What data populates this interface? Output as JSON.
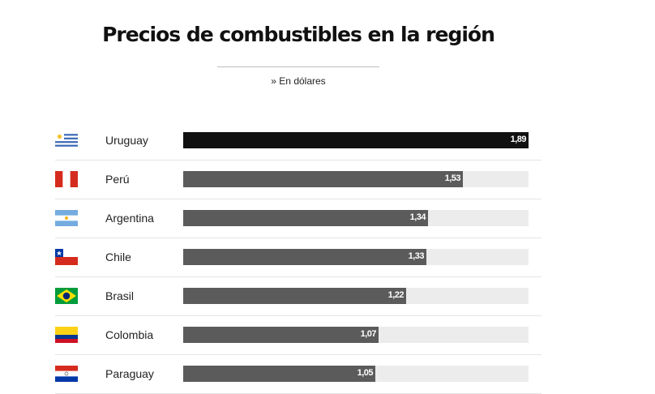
{
  "header": {
    "title": "Precios de combustibles en la región",
    "subtitle": "» En dólares"
  },
  "chart_data": {
    "type": "bar",
    "orientation": "horizontal",
    "title": "Precios de combustibles en la región",
    "subtitle": "» En dólares",
    "categories": [
      "Uruguay",
      "Perú",
      "Argentina",
      "Chile",
      "Brasil",
      "Colombia",
      "Paraguay"
    ],
    "values": [
      1.89,
      1.53,
      1.34,
      1.33,
      1.22,
      1.07,
      1.05
    ],
    "value_labels": [
      "1,89",
      "1,53",
      "1,34",
      "1,33",
      "1,22",
      "1,07",
      "1,05"
    ],
    "xlim": [
      0,
      1.89
    ],
    "grid": false,
    "legend": "none",
    "highlight_category": "Uruguay",
    "colors": {
      "highlight": "#111111",
      "bar": "#5b5b5b",
      "track": "#ececec",
      "label": "#ffffff"
    }
  },
  "rows": [
    {
      "country": "Uruguay",
      "value_label": "1,89",
      "flag_icon": "uruguay-flag-icon"
    },
    {
      "country": "Perú",
      "value_label": "1,53",
      "flag_icon": "peru-flag-icon"
    },
    {
      "country": "Argentina",
      "value_label": "1,34",
      "flag_icon": "argentina-flag-icon"
    },
    {
      "country": "Chile",
      "value_label": "1,33",
      "flag_icon": "chile-flag-icon"
    },
    {
      "country": "Brasil",
      "value_label": "1,22",
      "flag_icon": "brazil-flag-icon"
    },
    {
      "country": "Colombia",
      "value_label": "1,07",
      "flag_icon": "colombia-flag-icon"
    },
    {
      "country": "Paraguay",
      "value_label": "1,05",
      "flag_icon": "paraguay-flag-icon"
    }
  ]
}
